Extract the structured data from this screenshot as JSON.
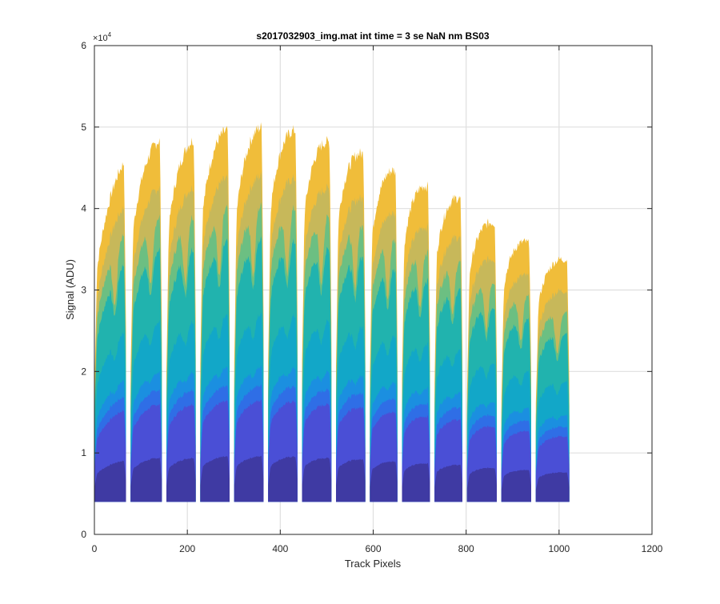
{
  "chart_data": {
    "type": "area",
    "title": "s2017032903_img.mat int time = 3 se  NaN nm BS03",
    "xlabel": "Track Pixels",
    "ylabel": "Signal (ADU)",
    "xlim": [
      0,
      1200
    ],
    "ylim": [
      0,
      60000
    ],
    "xticks": [
      0,
      200,
      400,
      600,
      800,
      1000,
      1200
    ],
    "yticks": [
      0,
      1,
      2,
      3,
      4,
      5,
      6
    ],
    "xtick_labels": [
      "0",
      "200",
      "400",
      "600",
      "800",
      "1000",
      "1200"
    ],
    "ytick_labels": [
      "0",
      "1",
      "2",
      "3",
      "4",
      "5",
      "6"
    ],
    "y_multiplier_label": "×10",
    "y_multiplier_exponent": "4",
    "grid": true,
    "baseline": 4000,
    "layer_colors": [
      "#3f3aa3",
      "#4a4fd6",
      "#2f6ee6",
      "#1b8fe0",
      "#12a7c8",
      "#21b3ae",
      "#6cbf82",
      "#c7b85a",
      "#f0bd3a"
    ],
    "layer_fractions": [
      0.27,
      0.31,
      0.36,
      0.5,
      0.7,
      0.79,
      0.87,
      1.0
    ],
    "segments": [
      {
        "x_start": 0,
        "x_end": 68,
        "peak_start": 40000,
        "peak_end": 46000
      },
      {
        "x_start": 78,
        "x_end": 145,
        "peak_start": 46500,
        "peak_end": 48500
      },
      {
        "x_start": 155,
        "x_end": 218,
        "peak_start": 47000,
        "peak_end": 48500
      },
      {
        "x_start": 228,
        "x_end": 291,
        "peak_start": 49500,
        "peak_end": 49500
      },
      {
        "x_start": 301,
        "x_end": 364,
        "peak_start": 49500,
        "peak_end": 50000
      },
      {
        "x_start": 374,
        "x_end": 437,
        "peak_start": 50000,
        "peak_end": 49500
      },
      {
        "x_start": 447,
        "x_end": 510,
        "peak_start": 49500,
        "peak_end": 48000
      },
      {
        "x_start": 520,
        "x_end": 583,
        "peak_start": 48500,
        "peak_end": 46500
      },
      {
        "x_start": 593,
        "x_end": 652,
        "peak_start": 46000,
        "peak_end": 44500
      },
      {
        "x_start": 662,
        "x_end": 722,
        "peak_start": 44500,
        "peak_end": 42500
      },
      {
        "x_start": 732,
        "x_end": 792,
        "peak_start": 43000,
        "peak_end": 41000
      },
      {
        "x_start": 802,
        "x_end": 866,
        "peak_start": 40000,
        "peak_end": 38000
      },
      {
        "x_start": 876,
        "x_end": 940,
        "peak_start": 38000,
        "peak_end": 35500
      },
      {
        "x_start": 950,
        "x_end": 1022,
        "peak_start": 35500,
        "peak_end": 33500
      }
    ]
  }
}
